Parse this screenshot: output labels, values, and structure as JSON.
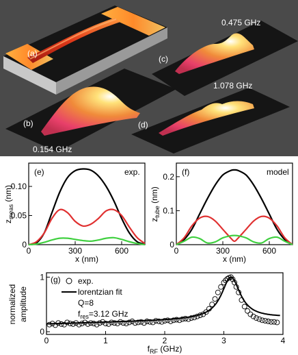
{
  "panels": {
    "a": "(a)",
    "b": "(b)",
    "c": "(c)",
    "d": "(d)",
    "e": "(e)",
    "f": "(f)",
    "g": "(g)"
  },
  "afm_labels": {
    "b_freq": "0.154 GHz",
    "c_freq": "0.475 GHz",
    "d_freq": "1.078 GHz"
  },
  "chart_data": [
    {
      "type": "line",
      "panel": "e",
      "annotation": "exp.",
      "xlabel": "x (nm)",
      "ylabel": "zmeas (nm)",
      "xlim": [
        0,
        750
      ],
      "ylim": [
        0,
        0.14
      ],
      "xticks": [
        "0",
        "300",
        "600"
      ],
      "yticks": [
        "0",
        "0.05",
        "0.10"
      ],
      "x": [
        0,
        50,
        100,
        150,
        200,
        250,
        300,
        350,
        400,
        450,
        500,
        550,
        600,
        650,
        700,
        750
      ],
      "series": [
        {
          "color": "#000000",
          "values": [
            0.0,
            0.003,
            0.02,
            0.055,
            0.09,
            0.115,
            0.127,
            0.13,
            0.128,
            0.118,
            0.1,
            0.075,
            0.045,
            0.02,
            0.005,
            0.001
          ]
        },
        {
          "color": "#e03030",
          "values": [
            0.0,
            0.005,
            0.02,
            0.045,
            0.06,
            0.055,
            0.04,
            0.032,
            0.035,
            0.045,
            0.058,
            0.06,
            0.05,
            0.03,
            0.012,
            0.002
          ]
        },
        {
          "color": "#40d040",
          "values": [
            0.0,
            0.001,
            0.004,
            0.008,
            0.011,
            0.011,
            0.009,
            0.007,
            0.006,
            0.008,
            0.011,
            0.012,
            0.009,
            0.005,
            0.002,
            0.0
          ]
        }
      ]
    },
    {
      "type": "line",
      "panel": "f",
      "annotation": "model",
      "xlabel": "x (nm)",
      "ylabel": "ztube (nm)",
      "xlim": [
        0,
        750
      ],
      "ylim": [
        0,
        0.24
      ],
      "xticks": [
        "0",
        "300",
        "600"
      ],
      "yticks": [
        "0",
        "0.1",
        "0.2"
      ],
      "x": [
        0,
        50,
        100,
        150,
        200,
        250,
        300,
        350,
        375,
        400,
        450,
        500,
        550,
        600,
        650,
        700,
        750
      ],
      "series": [
        {
          "color": "#000000",
          "values": [
            0.0,
            0.015,
            0.045,
            0.09,
            0.135,
            0.175,
            0.205,
            0.218,
            0.22,
            0.218,
            0.205,
            0.175,
            0.135,
            0.09,
            0.045,
            0.015,
            0.0
          ]
        },
        {
          "color": "#e03030",
          "values": [
            0.0,
            0.02,
            0.055,
            0.078,
            0.083,
            0.07,
            0.045,
            0.02,
            0.01,
            0.02,
            0.045,
            0.07,
            0.083,
            0.078,
            0.055,
            0.02,
            0.0
          ]
        },
        {
          "color": "#40d040",
          "values": [
            0.0,
            0.01,
            0.022,
            0.018,
            0.005,
            0.008,
            0.02,
            0.026,
            0.027,
            0.026,
            0.02,
            0.008,
            0.005,
            0.018,
            0.022,
            0.01,
            0.0
          ]
        }
      ]
    },
    {
      "type": "scatter",
      "panel": "g",
      "xlabel": "fRF (GHz)",
      "ylabel": "normalized amplitude",
      "xlim": [
        0,
        4
      ],
      "ylim": [
        -0.05,
        1.08
      ],
      "xticks": [
        "0",
        "1",
        "2",
        "3",
        "4"
      ],
      "yticks": [
        "0",
        "1"
      ],
      "legend": [
        "exp.",
        "lorentzian fit"
      ],
      "legend_position": "top-left",
      "fit_text": [
        "Q=8",
        "fres=3.12 GHz"
      ],
      "fit": {
        "f0": 3.12,
        "Q": 8,
        "baseline": 0.14,
        "baseline_slope": 0.03
      },
      "exp_x": [
        0.05,
        0.1,
        0.15,
        0.2,
        0.25,
        0.3,
        0.35,
        0.4,
        0.45,
        0.5,
        0.55,
        0.6,
        0.65,
        0.7,
        0.75,
        0.8,
        0.85,
        0.9,
        0.95,
        1.0,
        1.05,
        1.1,
        1.15,
        1.2,
        1.25,
        1.3,
        1.35,
        1.4,
        1.45,
        1.5,
        1.55,
        1.6,
        1.65,
        1.7,
        1.75,
        1.8,
        1.85,
        1.9,
        1.95,
        2.0,
        2.05,
        2.1,
        2.15,
        2.2,
        2.25,
        2.3,
        2.35,
        2.4,
        2.45,
        2.5,
        2.55,
        2.6,
        2.65,
        2.7,
        2.75,
        2.8,
        2.85,
        2.9,
        2.95,
        3.0,
        3.03,
        3.06,
        3.09,
        3.12,
        3.15,
        3.18,
        3.21,
        3.25,
        3.3,
        3.35,
        3.4,
        3.45,
        3.5,
        3.55,
        3.6,
        3.65,
        3.7,
        3.75,
        3.8,
        3.85,
        3.9
      ],
      "exp_y": [
        0.13,
        0.15,
        0.12,
        0.16,
        0.14,
        0.13,
        0.17,
        0.15,
        0.14,
        0.16,
        0.13,
        0.15,
        0.17,
        0.14,
        0.16,
        0.15,
        0.13,
        0.16,
        0.18,
        0.15,
        0.14,
        0.17,
        0.16,
        0.15,
        0.18,
        0.16,
        0.15,
        0.17,
        0.19,
        0.16,
        0.17,
        0.18,
        0.16,
        0.19,
        0.18,
        0.17,
        0.2,
        0.19,
        0.18,
        0.2,
        0.21,
        0.19,
        0.21,
        0.22,
        0.21,
        0.23,
        0.24,
        0.23,
        0.25,
        0.26,
        0.28,
        0.3,
        0.32,
        0.36,
        0.42,
        0.5,
        0.6,
        0.72,
        0.82,
        0.9,
        0.94,
        0.97,
        0.99,
        1.0,
        0.96,
        0.9,
        0.82,
        0.72,
        0.58,
        0.46,
        0.38,
        0.32,
        0.28,
        0.25,
        0.23,
        0.21,
        0.2,
        0.19,
        0.18,
        0.18,
        0.17
      ]
    }
  ]
}
